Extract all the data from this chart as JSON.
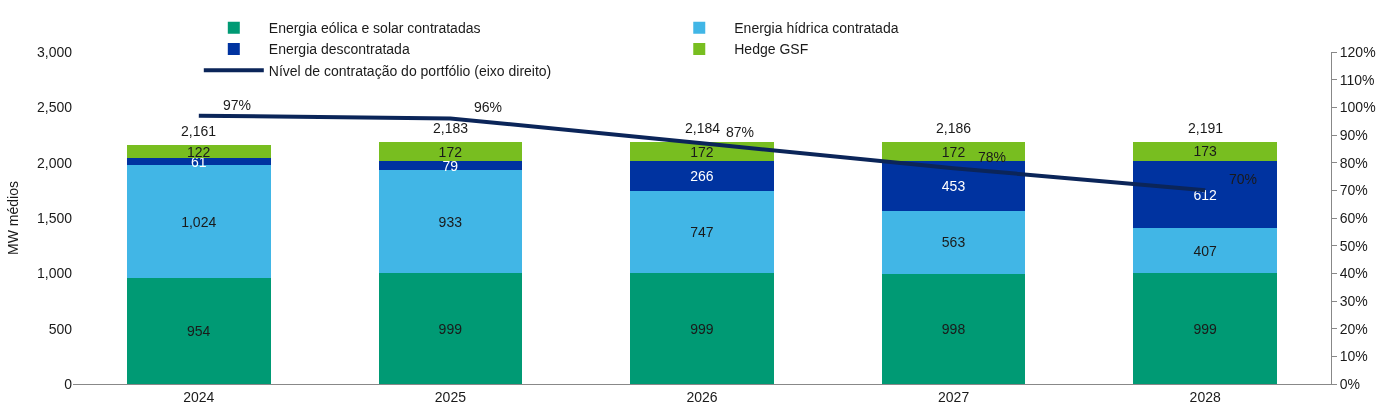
{
  "chart_data": {
    "type": "bar",
    "stacked": true,
    "categories": [
      "2024",
      "2025",
      "2026",
      "2027",
      "2028"
    ],
    "ylabel": "MW médios",
    "ylim": [
      0,
      3000
    ],
    "yticks": [
      0,
      500,
      {
        "value": 1000,
        "label": "1,000"
      },
      {
        "value": 1500,
        "label": "1,500"
      },
      {
        "value": 2000,
        "label": "2,000"
      },
      {
        "value": 2500,
        "label": "2,500"
      },
      {
        "value": 3000,
        "label": "3,000"
      }
    ],
    "y2lim": [
      0,
      120
    ],
    "y2ticks": [
      {
        "value": 0,
        "label": "0%"
      },
      {
        "value": 10,
        "label": "10%"
      },
      {
        "value": 20,
        "label": "20%"
      },
      {
        "value": 30,
        "label": "30%"
      },
      {
        "value": 40,
        "label": "40%"
      },
      {
        "value": 50,
        "label": "50%"
      },
      {
        "value": 60,
        "label": "60%"
      },
      {
        "value": 70,
        "label": "70%"
      },
      {
        "value": 80,
        "label": "80%"
      },
      {
        "value": 90,
        "label": "90%"
      },
      {
        "value": 100,
        "label": "100%"
      },
      {
        "value": 110,
        "label": "110%"
      },
      {
        "value": 120,
        "label": "120%"
      }
    ],
    "legend": "top",
    "grid": false,
    "series": [
      {
        "name": "Energia eólica e solar contratadas",
        "color": "#009a74",
        "values": [
          954,
          999,
          999,
          998,
          999
        ],
        "value_labels": [
          "954",
          "999",
          "999",
          "998",
          "999"
        ]
      },
      {
        "name": "Energia hídrica contratada",
        "color": "#41b6e6",
        "values": [
          1024,
          933,
          747,
          563,
          407
        ],
        "value_labels": [
          "1,024",
          "933",
          "747",
          "563",
          "407"
        ]
      },
      {
        "name": "Energia descontratada",
        "color": "#0033a0",
        "values": [
          61,
          79,
          266,
          453,
          612
        ],
        "value_labels": [
          "61",
          "79",
          "266",
          "453",
          "612"
        ]
      },
      {
        "name": "Hedge GSF",
        "color": "#78be20",
        "values": [
          122,
          172,
          172,
          172,
          173
        ],
        "value_labels": [
          "122",
          "172",
          "172",
          "172",
          "173"
        ]
      },
      {
        "name": "Nível de contratação do portfólio (eixo direito)",
        "type": "line",
        "axis": "y2",
        "color": "#0b2559",
        "marker": "none",
        "line_style": "solid",
        "values": [
          97,
          96,
          87,
          78,
          70
        ],
        "value_labels": [
          "97%",
          "96%",
          "87%",
          "78%",
          "70%"
        ]
      }
    ],
    "totals": [
      "2,161",
      "2,183",
      "2,184",
      "2,186",
      "2,191"
    ]
  }
}
